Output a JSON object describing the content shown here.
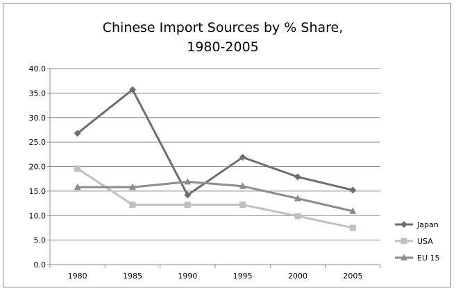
{
  "chart_data": {
    "type": "line",
    "title_lines": [
      "Chinese Import Sources by % Share,",
      "1980-2005"
    ],
    "categories": [
      "1980",
      "1985",
      "1990",
      "1995",
      "2000",
      "2005"
    ],
    "y_ticks": [
      "0.0",
      "5.0",
      "10.0",
      "15.0",
      "20.0",
      "25.0",
      "30.0",
      "35.0",
      "40.0"
    ],
    "ylim": [
      0,
      40
    ],
    "grid": true,
    "legend_position": "right",
    "series": [
      {
        "name": "Japan",
        "values": [
          26.8,
          35.7,
          14.2,
          21.9,
          17.9,
          15.2
        ],
        "color": "#6e6e6e",
        "marker": "diamond"
      },
      {
        "name": "USA",
        "values": [
          19.6,
          12.2,
          12.2,
          12.2,
          9.9,
          7.5
        ],
        "color": "#c0c0c0",
        "marker": "square"
      },
      {
        "name": "EU  15",
        "values": [
          15.8,
          15.8,
          16.9,
          16.0,
          13.5,
          10.9
        ],
        "color": "#8c8c8c",
        "marker": "triangle"
      }
    ]
  }
}
